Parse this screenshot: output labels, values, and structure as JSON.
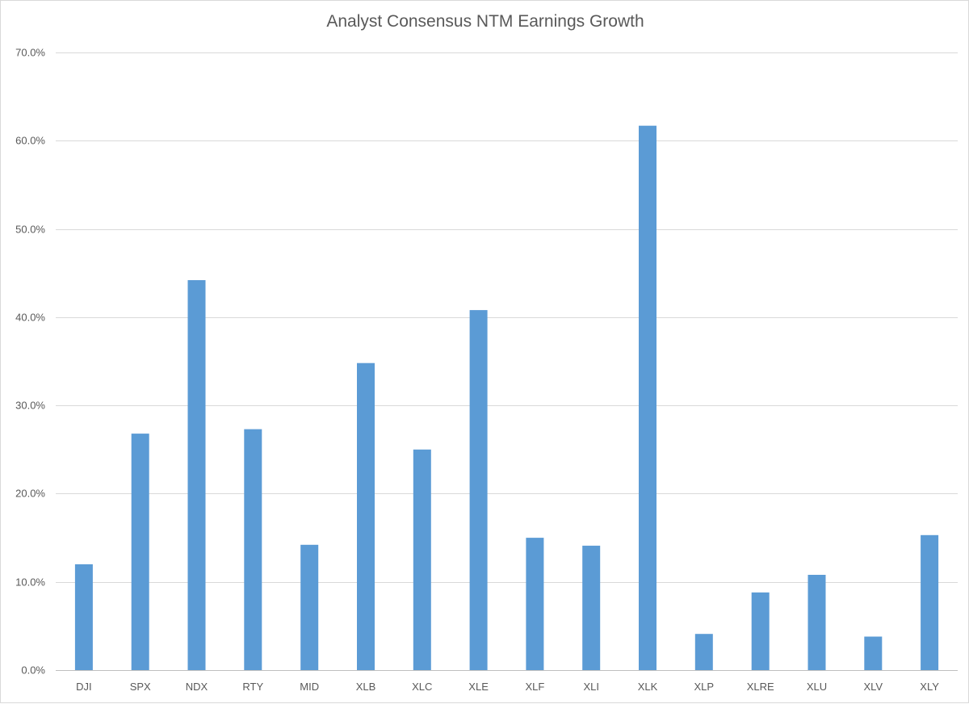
{
  "chart_data": {
    "type": "bar",
    "title": "Analyst Consensus NTM Earnings Growth",
    "xlabel": "",
    "ylabel": "",
    "categories": [
      "DJI",
      "SPX",
      "NDX",
      "RTY",
      "MID",
      "XLB",
      "XLC",
      "XLE",
      "XLF",
      "XLI",
      "XLK",
      "XLP",
      "XLRE",
      "XLU",
      "XLV",
      "XLY"
    ],
    "values": [
      12.0,
      26.8,
      44.2,
      27.3,
      14.2,
      34.8,
      25.0,
      40.8,
      15.0,
      14.1,
      61.7,
      4.1,
      8.8,
      10.8,
      3.8,
      15.3
    ],
    "ylim": [
      0,
      70
    ],
    "yticks": [
      0,
      10,
      20,
      30,
      40,
      50,
      60,
      70
    ],
    "ytick_labels": [
      "0.0%",
      "10.0%",
      "20.0%",
      "30.0%",
      "40.0%",
      "50.0%",
      "60.0%",
      "70.0%"
    ],
    "grid": true,
    "legend": "none",
    "bar_color": "#5b9bd5"
  }
}
